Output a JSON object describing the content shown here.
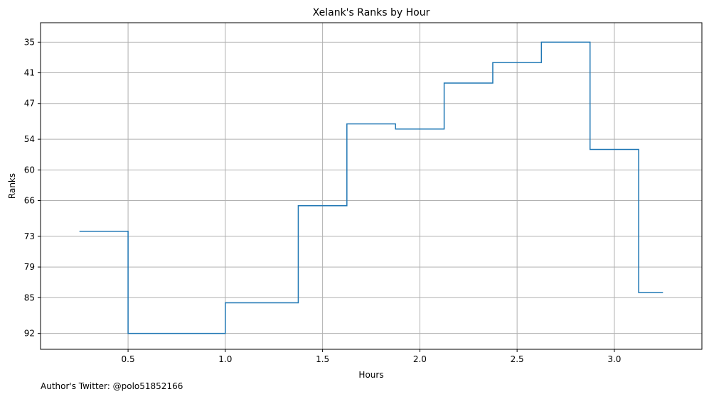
{
  "chart_data": {
    "type": "line",
    "step": true,
    "title": "Xelank's Ranks by Hour",
    "xlabel": "Hours",
    "ylabel": "Ranks",
    "x_ticks": [
      0.5,
      1.0,
      1.5,
      2.0,
      2.5,
      3.0
    ],
    "x_tick_labels": [
      "0.5",
      "1.0",
      "1.5",
      "2.0",
      "2.5",
      "3.0"
    ],
    "y_ticks": [
      35,
      41,
      47,
      54,
      60,
      66,
      73,
      79,
      85,
      92
    ],
    "y_tick_labels": [
      "35",
      "41",
      "47",
      "54",
      "60",
      "66",
      "73",
      "79",
      "85",
      "92"
    ],
    "y_inverted": true,
    "xlim": [
      0.05,
      3.45
    ],
    "ylim": [
      31.2,
      95.1
    ],
    "grid": true,
    "series": [
      {
        "color": "#1f77b4",
        "points": [
          {
            "x": 0.25,
            "y": 72.0
          },
          {
            "x": 0.5,
            "y": 92.0
          },
          {
            "x": 1.0,
            "y": 86.0
          },
          {
            "x": 1.375,
            "y": 67.0
          },
          {
            "x": 1.625,
            "y": 51.0
          },
          {
            "x": 1.875,
            "y": 52.0
          },
          {
            "x": 2.125,
            "y": 43.0
          },
          {
            "x": 2.375,
            "y": 39.0
          },
          {
            "x": 2.625,
            "y": 35.0
          },
          {
            "x": 2.875,
            "y": 56.0
          },
          {
            "x": 3.125,
            "y": 84.0
          },
          {
            "x": 3.25,
            "y": 84.0
          }
        ]
      }
    ]
  },
  "footer": {
    "text": "Author's Twitter: @polo51852166"
  }
}
